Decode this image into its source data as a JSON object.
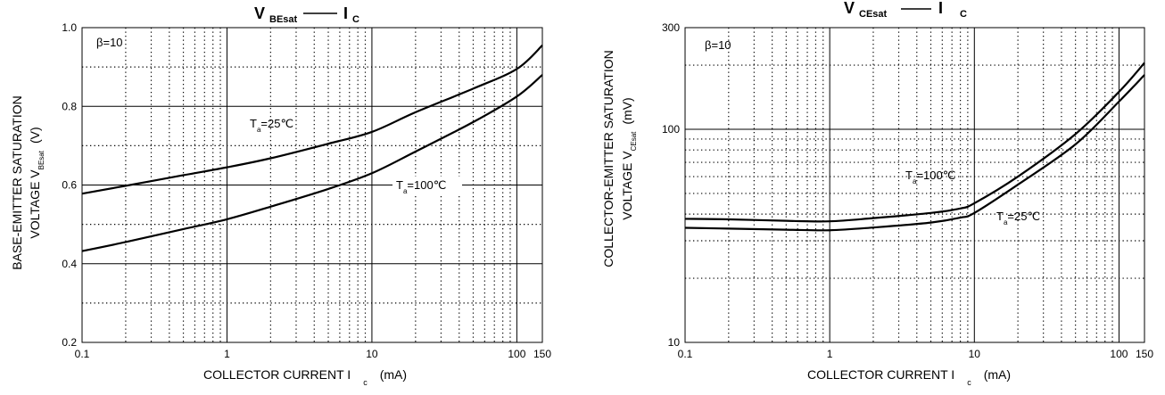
{
  "chart_data": [
    {
      "type": "line",
      "title_main": "V",
      "title_sub": "BEsat",
      "title_vs": "I",
      "title_vs_sub": "C",
      "xscale": "log",
      "xlim": [
        0.1,
        150
      ],
      "ylim": [
        0.2,
        1.0
      ],
      "xticks": [
        {
          "value": 0.1,
          "label": "0.1"
        },
        {
          "value": 1,
          "label": "1"
        },
        {
          "value": 10,
          "label": "10"
        },
        {
          "value": 100,
          "label": "100"
        },
        {
          "value": 150,
          "label": "150"
        }
      ],
      "yticks": [
        {
          "value": 0.2,
          "label": "0.2"
        },
        {
          "value": 0.4,
          "label": "0.4"
        },
        {
          "value": 0.6,
          "label": "0.6"
        },
        {
          "value": 0.8,
          "label": "0.8"
        },
        {
          "value": 1.0,
          "label": "1.0"
        }
      ],
      "xlabel_main": "COLLECTOR CURRENT I",
      "xlabel_sub": "c",
      "xlabel_unit": "(mA)",
      "ylabel_line1": "BASE-EMITTER SATURATION",
      "ylabel_line2_main": "VOLTAGE   V",
      "ylabel_line2_sub": "BEsat",
      "ylabel_line2_unit": "(V)",
      "beta_label": "β=10",
      "grid": true,
      "series": [
        {
          "name_main": "T",
          "name_sub": "a",
          "name_rest": "=25℃",
          "x": [
            0.1,
            0.2,
            0.5,
            1,
            2,
            5,
            10,
            20,
            50,
            100,
            150
          ],
          "y": [
            0.578,
            0.598,
            0.625,
            0.645,
            0.668,
            0.705,
            0.735,
            0.785,
            0.845,
            0.895,
            0.955
          ]
        },
        {
          "name_main": "T",
          "name_sub": "a",
          "name_rest": "=100℃",
          "x": [
            0.1,
            0.2,
            0.5,
            1,
            2,
            5,
            10,
            20,
            50,
            100,
            150
          ],
          "y": [
            0.432,
            0.455,
            0.488,
            0.513,
            0.545,
            0.59,
            0.63,
            0.685,
            0.76,
            0.825,
            0.88
          ]
        }
      ]
    },
    {
      "type": "line",
      "title_main": "V",
      "title_sub": "CEsat",
      "title_vs": "I",
      "title_vs_sub": "C",
      "xscale": "log",
      "yscale": "log",
      "xlim": [
        0.1,
        150
      ],
      "ylim": [
        10,
        300
      ],
      "xticks": [
        {
          "value": 0.1,
          "label": "0.1"
        },
        {
          "value": 1,
          "label": "1"
        },
        {
          "value": 10,
          "label": "10"
        },
        {
          "value": 100,
          "label": "100"
        },
        {
          "value": 150,
          "label": "150"
        }
      ],
      "yticks": [
        {
          "value": 10,
          "label": "10"
        },
        {
          "value": 100,
          "label": "100"
        },
        {
          "value": 300,
          "label": "300"
        }
      ],
      "xlabel_main": "COLLECTOR CURRENT I",
      "xlabel_sub": "c",
      "xlabel_unit": "(mA)",
      "ylabel_line1": "COLLECTOR-EMITTER SATURATION",
      "ylabel_line2_main": "VOLTAGE   V",
      "ylabel_line2_sub": "CEsat",
      "ylabel_line2_unit": "(mV)",
      "beta_label": "β=10",
      "grid": true,
      "series": [
        {
          "name_main": "T",
          "name_sub": "a",
          "name_rest": "=100℃",
          "x": [
            0.1,
            0.2,
            0.5,
            1,
            2,
            5,
            8,
            10,
            20,
            50,
            100,
            150
          ],
          "y": [
            38,
            37.8,
            37.2,
            37,
            38.3,
            40.5,
            42.5,
            45,
            60,
            95,
            150,
            205
          ]
        },
        {
          "name_main": "T",
          "name_sub": "a",
          "name_rest": "=25℃",
          "x": [
            0.1,
            0.2,
            0.5,
            1,
            2,
            5,
            8,
            10,
            20,
            50,
            100,
            150
          ],
          "y": [
            34.5,
            34.2,
            33.8,
            33.6,
            34.6,
            36.5,
            38.5,
            40.5,
            55,
            85,
            135,
            180
          ]
        }
      ]
    }
  ]
}
